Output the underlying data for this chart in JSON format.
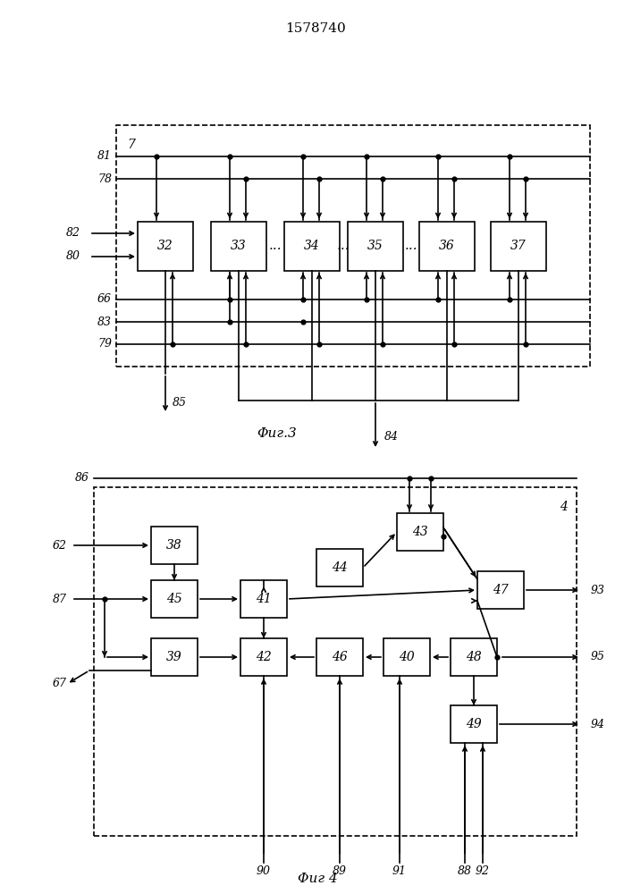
{
  "title": "1578740",
  "fig3_label": "Φиг.3",
  "fig4_label": "Φиг 4",
  "bg_color": "#ffffff"
}
